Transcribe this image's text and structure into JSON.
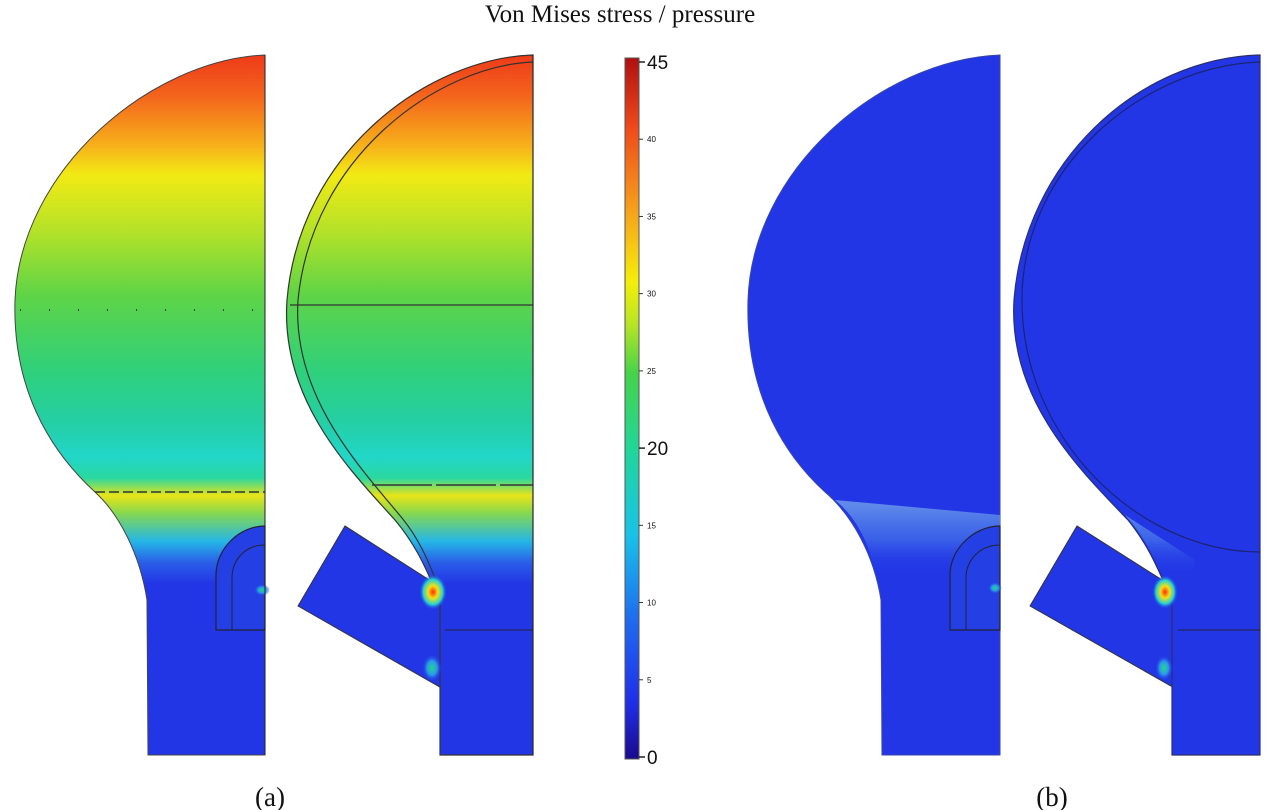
{
  "figure": {
    "title": "Von Mises stress / pressure",
    "panel_a_label": "(a)",
    "panel_b_label": "(b)"
  },
  "colorbar": {
    "min": 0,
    "max": 45,
    "major_ticks": [
      {
        "value": 45,
        "label": "45"
      },
      {
        "value": 20,
        "label": "20"
      },
      {
        "value": 0,
        "label": "0"
      }
    ],
    "minor_ticks": [
      {
        "value": 40,
        "label": "40"
      },
      {
        "value": 35,
        "label": "35"
      },
      {
        "value": 30,
        "label": "30"
      },
      {
        "value": 25,
        "label": "25"
      },
      {
        "value": 15,
        "label": "15"
      },
      {
        "value": 10,
        "label": "10"
      },
      {
        "value": 5,
        "label": "5"
      }
    ],
    "colormap": [
      "#1a0a8c",
      "#1f2fe8",
      "#1f6cf0",
      "#18c2e8",
      "#20d69a",
      "#46d24a",
      "#b6e424",
      "#f5ee0a",
      "#f6a31b",
      "#ef4a1c",
      "#b01010"
    ]
  },
  "colors": {
    "low_stress": "#2236e6",
    "outline": "#333333"
  }
}
